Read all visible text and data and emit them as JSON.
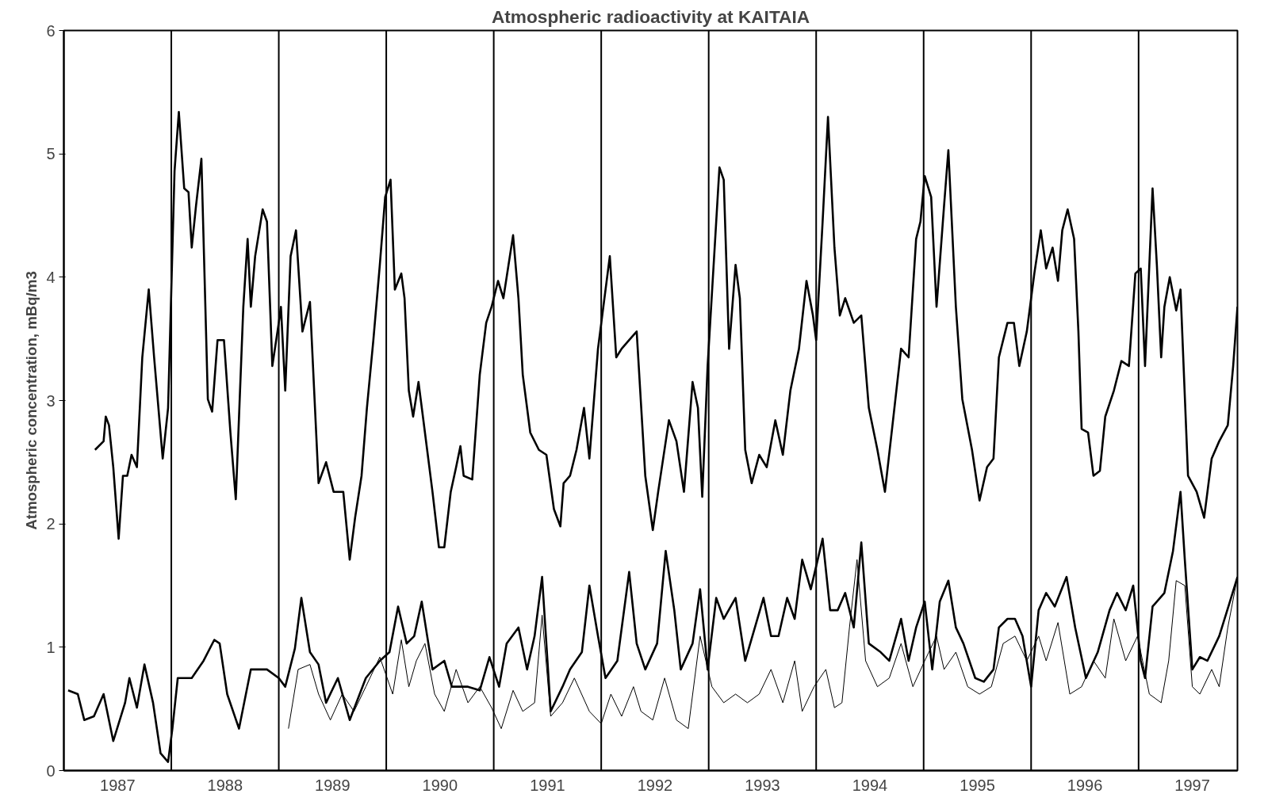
{
  "chart_data": {
    "type": "line",
    "title": "Atmospheric radioactivity at KAITAIA",
    "ylabel": "Atmospheric concentration, mBq/m3",
    "xlim": [
      1987,
      1997.92
    ],
    "ylim": [
      0,
      6
    ],
    "yticks": [
      0,
      1,
      2,
      3,
      4,
      5,
      6
    ],
    "xticks": [
      {
        "value": 1987.5,
        "label": "1987"
      },
      {
        "value": 1988.5,
        "label": "1988"
      },
      {
        "value": 1989.5,
        "label": "1989"
      },
      {
        "value": 1990.5,
        "label": "1990"
      },
      {
        "value": 1991.5,
        "label": "1991"
      },
      {
        "value": 1992.5,
        "label": "1992"
      },
      {
        "value": 1993.5,
        "label": "1993"
      },
      {
        "value": 1994.5,
        "label": "1994"
      },
      {
        "value": 1995.5,
        "label": "1995"
      },
      {
        "value": 1996.5,
        "label": "1996"
      },
      {
        "value": 1997.5,
        "label": "1997"
      }
    ],
    "grid": false,
    "marker": "none",
    "line_style": "solid",
    "ref_lines": [
      {
        "axis": "x",
        "value": 1988,
        "color": "#000000"
      },
      {
        "axis": "x",
        "value": 1989,
        "color": "#000000"
      },
      {
        "axis": "x",
        "value": 1990,
        "color": "#000000"
      },
      {
        "axis": "x",
        "value": 1991,
        "color": "#000000"
      },
      {
        "axis": "x",
        "value": 1992,
        "color": "#000000"
      },
      {
        "axis": "x",
        "value": 1993,
        "color": "#000000"
      },
      {
        "axis": "x",
        "value": 1994,
        "color": "#000000"
      },
      {
        "axis": "x",
        "value": 1995,
        "color": "#000000"
      },
      {
        "axis": "x",
        "value": 1996,
        "color": "#000000"
      },
      {
        "axis": "x",
        "value": 1997,
        "color": "#000000"
      }
    ],
    "series": [
      {
        "color": "#000000",
        "x": [
          1987.29,
          1987.37,
          1987.39,
          1987.42,
          1987.46,
          1987.51,
          1987.55,
          1987.59,
          1987.63,
          1987.68,
          1987.73,
          1987.79,
          1987.84,
          1987.92,
          1987.97,
          1988.03,
          1988.07,
          1988.12,
          1988.16,
          1988.19,
          1988.23,
          1988.28,
          1988.34,
          1988.38,
          1988.43,
          1988.49,
          1988.55,
          1988.6,
          1988.67,
          1988.71,
          1988.74,
          1988.78,
          1988.85,
          1988.89,
          1988.94,
          1989.0,
          1989.02,
          1989.06,
          1989.11,
          1989.16,
          1989.22,
          1989.29,
          1989.37,
          1989.44,
          1989.51,
          1989.6,
          1989.66,
          1989.71,
          1989.77,
          1989.82,
          1989.88,
          1989.94,
          1989.99,
          1990.04,
          1990.08,
          1990.14,
          1990.17,
          1990.21,
          1990.25,
          1990.3,
          1990.36,
          1990.43,
          1990.49,
          1990.54,
          1990.6,
          1990.65,
          1990.69,
          1990.72,
          1990.8,
          1990.87,
          1990.93,
          1990.98,
          1991.04,
          1991.09,
          1991.18,
          1991.23,
          1991.27,
          1991.34,
          1991.42,
          1991.49,
          1991.56,
          1991.62,
          1991.65,
          1991.71,
          1991.77,
          1991.84,
          1991.89,
          1991.97,
          1992.02,
          1992.08,
          1992.14,
          1992.19,
          1992.26,
          1992.33,
          1992.41,
          1992.48,
          1992.53,
          1992.63,
          1992.7,
          1992.77,
          1992.85,
          1992.9,
          1992.94,
          1992.99,
          1993.07,
          1993.1,
          1993.14,
          1993.19,
          1993.25,
          1993.29,
          1993.34,
          1993.4,
          1993.47,
          1993.54,
          1993.62,
          1993.69,
          1993.76,
          1993.84,
          1993.91,
          1993.97,
          1994.0,
          1994.06,
          1994.11,
          1994.17,
          1994.22,
          1994.27,
          1994.35,
          1994.42,
          1994.49,
          1994.57,
          1994.64,
          1994.71,
          1994.79,
          1994.86,
          1994.93,
          1994.97,
          1995.01,
          1995.07,
          1995.12,
          1995.19,
          1995.23,
          1995.3,
          1995.36,
          1995.45,
          1995.52,
          1995.59,
          1995.65,
          1995.7,
          1995.78,
          1995.84,
          1995.89,
          1995.96,
          1996.03,
          1996.09,
          1996.14,
          1996.2,
          1996.25,
          1996.29,
          1996.34,
          1996.4,
          1996.44,
          1996.47,
          1996.53,
          1996.58,
          1996.64,
          1996.69,
          1996.77,
          1996.84,
          1996.91,
          1996.97,
          1997.02,
          1997.06,
          1997.1,
          1997.13,
          1997.17,
          1997.21,
          1997.24,
          1997.29,
          1997.35,
          1997.39,
          1997.46,
          1997.54,
          1997.61,
          1997.68,
          1997.75,
          1997.83,
          1997.88,
          1997.92
        ],
        "values": [
          2.6,
          2.67,
          2.87,
          2.8,
          2.46,
          1.88,
          2.39,
          2.39,
          2.56,
          2.46,
          3.35,
          3.9,
          3.35,
          2.53,
          2.94,
          4.86,
          5.34,
          4.72,
          4.69,
          4.24,
          4.58,
          4.96,
          3.01,
          2.91,
          3.49,
          3.49,
          2.74,
          2.2,
          3.76,
          4.31,
          3.76,
          4.17,
          4.55,
          4.45,
          3.28,
          3.63,
          3.76,
          3.08,
          4.17,
          4.38,
          3.56,
          3.8,
          2.33,
          2.5,
          2.26,
          2.26,
          1.71,
          2.05,
          2.39,
          2.94,
          3.49,
          4.1,
          4.65,
          4.79,
          3.9,
          4.03,
          3.83,
          3.08,
          2.87,
          3.15,
          2.74,
          2.26,
          1.81,
          1.81,
          2.26,
          2.46,
          2.63,
          2.39,
          2.36,
          3.21,
          3.63,
          3.76,
          3.97,
          3.83,
          4.34,
          3.83,
          3.21,
          2.74,
          2.6,
          2.56,
          2.12,
          1.98,
          2.33,
          2.39,
          2.6,
          2.94,
          2.53,
          3.42,
          3.76,
          4.17,
          3.35,
          3.42,
          3.49,
          3.56,
          2.39,
          1.95,
          2.26,
          2.84,
          2.67,
          2.26,
          3.15,
          2.94,
          2.22,
          3.28,
          4.45,
          4.89,
          4.79,
          3.42,
          4.1,
          3.83,
          2.6,
          2.33,
          2.56,
          2.46,
          2.84,
          2.56,
          3.08,
          3.42,
          3.97,
          3.69,
          3.49,
          4.45,
          5.3,
          4.24,
          3.69,
          3.83,
          3.63,
          3.69,
          2.94,
          2.6,
          2.26,
          2.8,
          3.42,
          3.35,
          4.31,
          4.45,
          4.82,
          4.65,
          3.76,
          4.58,
          5.03,
          3.76,
          3.01,
          2.6,
          2.19,
          2.46,
          2.53,
          3.35,
          3.63,
          3.63,
          3.28,
          3.56,
          4.03,
          4.38,
          4.07,
          4.24,
          3.97,
          4.38,
          4.55,
          4.31,
          3.56,
          2.77,
          2.74,
          2.39,
          2.43,
          2.87,
          3.08,
          3.32,
          3.28,
          4.03,
          4.07,
          3.28,
          4.1,
          4.72,
          4.1,
          3.35,
          3.76,
          4.0,
          3.73,
          3.9,
          2.39,
          2.26,
          2.05,
          2.53,
          2.67,
          2.8,
          3.28,
          3.76
        ]
      },
      {
        "color": "#000000",
        "x": [
          1987.04,
          1987.13,
          1987.19,
          1987.28,
          1987.37,
          1987.46,
          1987.57,
          1987.61,
          1987.68,
          1987.75,
          1987.83,
          1987.9,
          1987.97,
          1988.01,
          1988.06,
          1988.19,
          1988.3,
          1988.4,
          1988.45,
          1988.52,
          1988.63,
          1988.74,
          1988.89,
          1989.0,
          1989.06,
          1989.15,
          1989.21,
          1989.29,
          1989.37,
          1989.44,
          1989.55,
          1989.66,
          1989.81,
          1989.94,
          1990.03,
          1990.11,
          1990.19,
          1990.26,
          1990.33,
          1990.43,
          1990.54,
          1990.61,
          1990.76,
          1990.87,
          1990.96,
          1991.05,
          1991.12,
          1991.23,
          1991.31,
          1991.38,
          1991.45,
          1991.53,
          1991.64,
          1991.71,
          1991.82,
          1991.89,
          1991.97,
          1992.04,
          1992.15,
          1992.26,
          1992.33,
          1992.41,
          1992.52,
          1992.6,
          1992.68,
          1992.74,
          1992.85,
          1992.92,
          1992.99,
          1993.07,
          1993.14,
          1993.25,
          1993.34,
          1993.43,
          1993.51,
          1993.58,
          1993.65,
          1993.73,
          1993.8,
          1993.87,
          1993.95,
          1994.06,
          1994.13,
          1994.2,
          1994.27,
          1994.35,
          1994.42,
          1994.49,
          1994.6,
          1994.68,
          1994.79,
          1994.86,
          1994.93,
          1995.01,
          1995.08,
          1995.15,
          1995.23,
          1995.3,
          1995.37,
          1995.48,
          1995.56,
          1995.65,
          1995.7,
          1995.78,
          1995.85,
          1995.92,
          1996.0,
          1996.07,
          1996.14,
          1996.22,
          1996.33,
          1996.41,
          1996.51,
          1996.62,
          1996.73,
          1996.8,
          1996.88,
          1996.95,
          1997.02,
          1997.06,
          1997.13,
          1997.24,
          1997.32,
          1997.39,
          1997.43,
          1997.5,
          1997.57,
          1997.64,
          1997.75,
          1997.85,
          1997.92
        ],
        "values": [
          0.65,
          0.62,
          0.41,
          0.44,
          0.62,
          0.24,
          0.55,
          0.75,
          0.51,
          0.86,
          0.55,
          0.14,
          0.07,
          0.34,
          0.75,
          0.75,
          0.89,
          1.06,
          1.03,
          0.62,
          0.34,
          0.82,
          0.82,
          0.75,
          0.68,
          0.99,
          1.4,
          0.96,
          0.86,
          0.55,
          0.75,
          0.41,
          0.75,
          0.89,
          0.96,
          1.33,
          1.03,
          1.09,
          1.37,
          0.82,
          0.89,
          0.68,
          0.68,
          0.65,
          0.92,
          0.68,
          1.03,
          1.16,
          0.82,
          1.09,
          1.57,
          0.48,
          0.68,
          0.82,
          0.96,
          1.5,
          1.09,
          0.75,
          0.89,
          1.61,
          1.03,
          0.82,
          1.03,
          1.78,
          1.3,
          0.82,
          1.03,
          1.47,
          0.82,
          1.4,
          1.23,
          1.4,
          0.89,
          1.16,
          1.4,
          1.09,
          1.09,
          1.4,
          1.23,
          1.71,
          1.47,
          1.88,
          1.3,
          1.3,
          1.44,
          1.16,
          1.85,
          1.03,
          0.96,
          0.89,
          1.23,
          0.89,
          1.16,
          1.37,
          0.82,
          1.37,
          1.54,
          1.16,
          1.03,
          0.75,
          0.72,
          0.82,
          1.16,
          1.23,
          1.23,
          1.09,
          0.68,
          1.3,
          1.44,
          1.33,
          1.57,
          1.16,
          0.75,
          0.96,
          1.3,
          1.44,
          1.3,
          1.5,
          0.89,
          0.75,
          1.33,
          1.44,
          1.78,
          2.26,
          1.71,
          0.82,
          0.92,
          0.89,
          1.09,
          1.37,
          1.57
        ]
      },
      {
        "color": "#000000",
        "x": [
          1989.09,
          1989.18,
          1989.29,
          1989.37,
          1989.48,
          1989.59,
          1989.7,
          1989.81,
          1989.94,
          1990.06,
          1990.14,
          1990.21,
          1990.28,
          1990.36,
          1990.45,
          1990.54,
          1990.65,
          1990.76,
          1990.87,
          1990.98,
          1991.07,
          1991.18,
          1991.27,
          1991.38,
          1991.45,
          1991.53,
          1991.64,
          1991.75,
          1991.89,
          1992.0,
          1992.09,
          1992.19,
          1992.3,
          1992.37,
          1992.48,
          1992.59,
          1992.7,
          1992.81,
          1992.92,
          1993.03,
          1993.14,
          1993.25,
          1993.36,
          1993.47,
          1993.58,
          1993.69,
          1993.8,
          1993.87,
          1993.98,
          1994.09,
          1994.17,
          1994.24,
          1994.31,
          1994.38,
          1994.46,
          1994.57,
          1994.68,
          1994.79,
          1994.9,
          1995.01,
          1995.12,
          1995.19,
          1995.3,
          1995.41,
          1995.52,
          1995.63,
          1995.74,
          1995.85,
          1995.96,
          1996.07,
          1996.14,
          1996.25,
          1996.36,
          1996.47,
          1996.58,
          1996.69,
          1996.77,
          1996.88,
          1996.99,
          1997.1,
          1997.21,
          1997.28,
          1997.35,
          1997.43,
          1997.5,
          1997.57,
          1997.68,
          1997.75,
          1997.83,
          1997.92
        ],
        "values": [
          0.34,
          0.82,
          0.86,
          0.62,
          0.41,
          0.62,
          0.48,
          0.68,
          0.92,
          0.62,
          1.06,
          0.68,
          0.89,
          1.03,
          0.62,
          0.48,
          0.82,
          0.55,
          0.68,
          0.51,
          0.34,
          0.65,
          0.48,
          0.55,
          1.26,
          0.44,
          0.55,
          0.75,
          0.48,
          0.38,
          0.62,
          0.44,
          0.68,
          0.48,
          0.41,
          0.75,
          0.41,
          0.34,
          1.09,
          0.68,
          0.55,
          0.62,
          0.55,
          0.62,
          0.82,
          0.55,
          0.89,
          0.48,
          0.68,
          0.82,
          0.51,
          0.55,
          1.16,
          1.71,
          0.89,
          0.68,
          0.75,
          1.03,
          0.68,
          0.89,
          1.09,
          0.82,
          0.96,
          0.68,
          0.62,
          0.68,
          1.03,
          1.09,
          0.89,
          1.09,
          0.89,
          1.2,
          0.62,
          0.68,
          0.89,
          0.75,
          1.23,
          0.89,
          1.09,
          0.62,
          0.55,
          0.89,
          1.54,
          1.5,
          0.68,
          0.62,
          0.82,
          0.68,
          1.16,
          1.57
        ]
      }
    ]
  }
}
